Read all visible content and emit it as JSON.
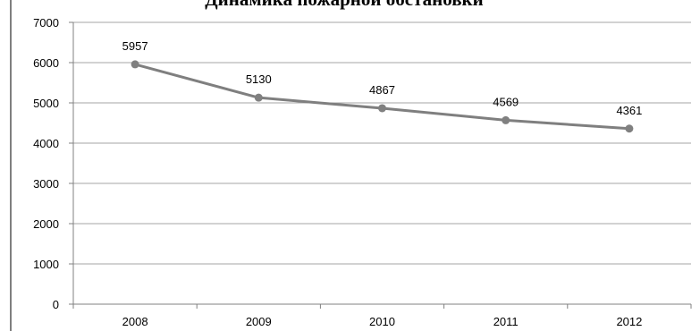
{
  "chart_data": {
    "type": "line",
    "title": "Динамика пожарной обстановки",
    "categories": [
      "2008",
      "2009",
      "2010",
      "2011",
      "2012"
    ],
    "series": [
      {
        "values": [
          5957,
          5130,
          4867,
          4569,
          4361
        ]
      }
    ],
    "y_ticks": [
      "0",
      "1000",
      "2000",
      "3000",
      "4000",
      "5000",
      "6000",
      "7000"
    ],
    "ylim": [
      0,
      7000
    ],
    "grid": true,
    "legend": "none",
    "colors": {
      "line": "#7f7f7f",
      "marker": "#808080",
      "grid": "#a6a6a6",
      "axis": "#808080"
    }
  }
}
